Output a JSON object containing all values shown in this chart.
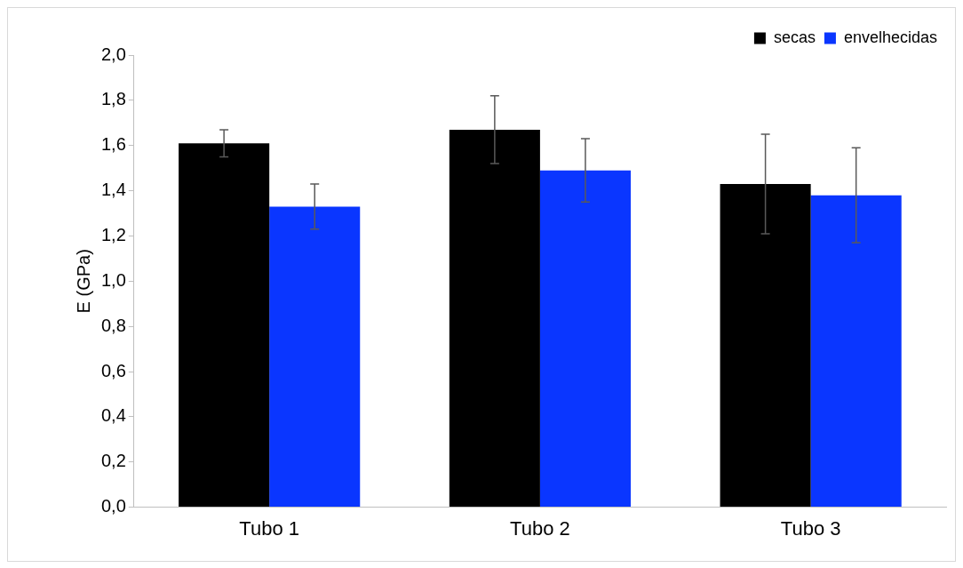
{
  "chart_data": {
    "type": "bar",
    "ylabel": "E (GPa)",
    "categories": [
      "Tubo 1",
      "Tubo 2",
      "Tubo 3"
    ],
    "series": [
      {
        "name": "secas",
        "color": "#000000",
        "values": [
          1.61,
          1.67,
          1.43
        ],
        "errors": [
          0.06,
          0.15,
          0.22
        ]
      },
      {
        "name": "envelhecidas",
        "color": "#0a36ff",
        "values": [
          1.33,
          1.49,
          1.38
        ],
        "errors": [
          0.1,
          0.14,
          0.21
        ]
      }
    ],
    "ylim": [
      0,
      2
    ],
    "yticks": [
      {
        "value": 0,
        "label": "0,0"
      },
      {
        "value": 0.2,
        "label": "0,2"
      },
      {
        "value": 0.4,
        "label": "0,4"
      },
      {
        "value": 0.6,
        "label": "0,6"
      },
      {
        "value": 0.8,
        "label": "0,8"
      },
      {
        "value": 1,
        "label": "1,0"
      },
      {
        "value": 1.2,
        "label": "1,2"
      },
      {
        "value": 1.4,
        "label": "1,4"
      },
      {
        "value": 1.6,
        "label": "1,6"
      },
      {
        "value": 1.8,
        "label": "1,8"
      },
      {
        "value": 2,
        "label": "2,0"
      }
    ],
    "grid": false,
    "legend": "top right"
  }
}
